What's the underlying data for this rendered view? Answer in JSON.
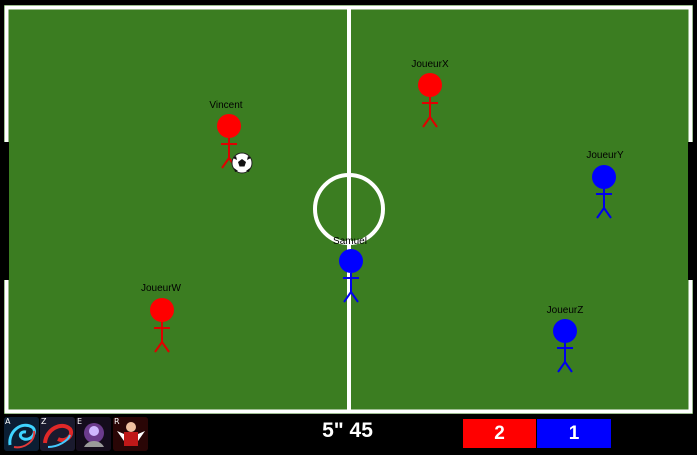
{
  "players": {
    "red": [
      {
        "name": "Vincent"
      },
      {
        "name": "JoueurX"
      },
      {
        "name": "JoueurW"
      }
    ],
    "blue": [
      {
        "name": "JoueurY"
      },
      {
        "name": "Samuel"
      },
      {
        "name": "JoueurZ"
      }
    ]
  },
  "colors": {
    "pitch": "#3b7d21",
    "lines": "#ffffff",
    "red_team": "#ff0000",
    "blue_team": "#0000ff",
    "hud_background": "#000000"
  },
  "skills": [
    {
      "key": "A",
      "icon": "cyan-swirl-ability-icon"
    },
    {
      "key": "Z",
      "icon": "red-swirl-ability-icon"
    },
    {
      "key": "E",
      "icon": "purple-shadow-ability-icon"
    },
    {
      "key": "R",
      "icon": "red-armored-warrior-ability-icon"
    }
  ],
  "timer": "5\" 45",
  "score": {
    "red": "2",
    "blue": "1"
  }
}
